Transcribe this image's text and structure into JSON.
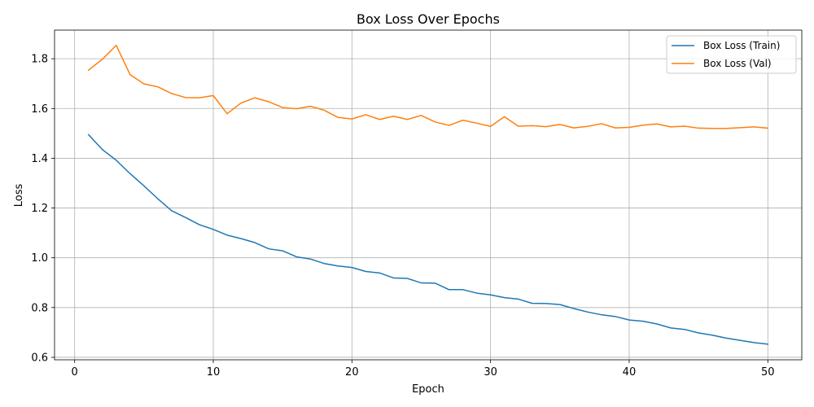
{
  "chart_data": {
    "type": "line",
    "title": "Box Loss Over Epochs",
    "xlabel": "Epoch",
    "ylabel": "Loss",
    "xlim": [
      -1.45,
      52.45
    ],
    "ylim": [
      0.59,
      1.915
    ],
    "xticks": [
      0,
      10,
      20,
      30,
      40,
      50
    ],
    "yticks": [
      0.6,
      0.8,
      1.0,
      1.2,
      1.4,
      1.6,
      1.8
    ],
    "ytick_labels": [
      "0.6",
      "0.8",
      "1.0",
      "1.2",
      "1.4",
      "1.6",
      "1.8"
    ],
    "grid": true,
    "legend_position": "top-right",
    "x": [
      1,
      2,
      3,
      4,
      5,
      6,
      7,
      8,
      9,
      10,
      11,
      12,
      13,
      14,
      15,
      16,
      17,
      18,
      19,
      20,
      21,
      22,
      23,
      24,
      25,
      26,
      27,
      28,
      29,
      30,
      31,
      32,
      33,
      34,
      35,
      36,
      37,
      38,
      39,
      40,
      41,
      42,
      43,
      44,
      45,
      46,
      47,
      48,
      49,
      50
    ],
    "series": [
      {
        "name": "Box Loss (Train)",
        "color": "#1f77b4",
        "values": [
          1.495,
          1.435,
          1.392,
          1.338,
          1.289,
          1.237,
          1.189,
          1.162,
          1.133,
          1.114,
          1.091,
          1.077,
          1.061,
          1.036,
          1.028,
          1.004,
          0.995,
          0.977,
          0.967,
          0.961,
          0.945,
          0.939,
          0.919,
          0.917,
          0.899,
          0.898,
          0.872,
          0.872,
          0.858,
          0.851,
          0.84,
          0.834,
          0.817,
          0.816,
          0.812,
          0.796,
          0.782,
          0.771,
          0.764,
          0.75,
          0.745,
          0.734,
          0.718,
          0.712,
          0.698,
          0.689,
          0.677,
          0.668,
          0.659,
          0.653
        ]
      },
      {
        "name": "Box Loss (Val)",
        "color": "#ff7f0e",
        "values": [
          1.754,
          1.798,
          1.854,
          1.736,
          1.699,
          1.687,
          1.66,
          1.644,
          1.643,
          1.652,
          1.579,
          1.622,
          1.643,
          1.627,
          1.604,
          1.599,
          1.609,
          1.593,
          1.564,
          1.558,
          1.575,
          1.556,
          1.569,
          1.556,
          1.572,
          1.546,
          1.532,
          1.553,
          1.541,
          1.528,
          1.567,
          1.529,
          1.531,
          1.527,
          1.536,
          1.522,
          1.528,
          1.539,
          1.522,
          1.524,
          1.533,
          1.538,
          1.526,
          1.529,
          1.521,
          1.52,
          1.52,
          1.523,
          1.526,
          1.521
        ]
      }
    ]
  }
}
